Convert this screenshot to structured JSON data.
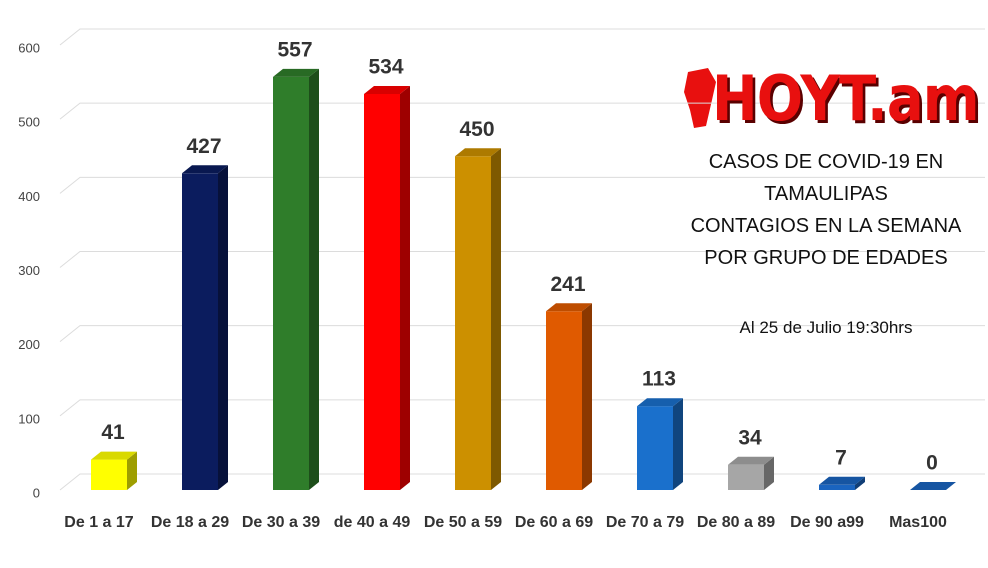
{
  "chart_data": {
    "type": "bar3d",
    "logo": "HOYT.am",
    "title": "CASOS DE COVID-19 EN TAMAULIPAS",
    "subtitle": "CONTAGIOS EN LA SEMANA POR GRUPO DE EDADES",
    "annotation": "Al 25 de Julio 19:30hrs",
    "categories": [
      "De 1 a 17",
      "De 18 a 29",
      "De 30 a 39",
      "de 40 a 49",
      "De 50 a 59",
      "De 60 a 69",
      "De 70 a 79",
      "De 80 a 89",
      "De 90 a99",
      "Mas100"
    ],
    "values": [
      41,
      427,
      557,
      534,
      450,
      241,
      113,
      34,
      7,
      0
    ],
    "colors": [
      "#ffff00",
      "#0b1c5e",
      "#2f7d2a",
      "#ff0000",
      "#cc9000",
      "#e05a00",
      "#1a70cc",
      "#a6a6a6",
      "#1a64bf",
      "#1a64bf"
    ],
    "ylim": [
      0,
      600
    ],
    "yticks": [
      0,
      100,
      200,
      300,
      400,
      500,
      600
    ],
    "grid": true
  }
}
